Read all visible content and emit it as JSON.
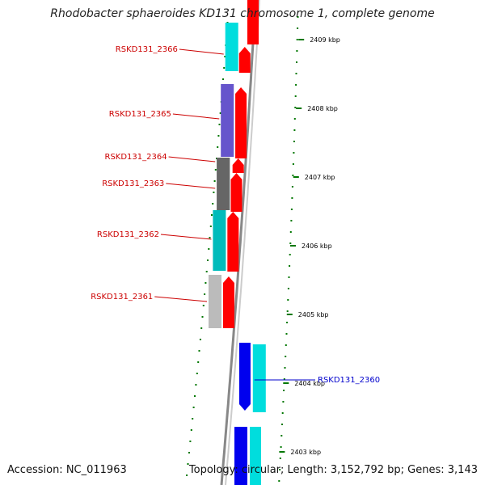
{
  "title": "Rhodobacter sphaeroides KD131 chromosome 1, complete genome",
  "footer": {
    "accession": "Accession: NC_011963",
    "topology": "Topology: circular; Length: 3,152,792 bp; Genes: 3,143"
  },
  "colors": {
    "forward_cds": "#ff0000",
    "reverse_cds": "#0000ee",
    "tick": "#007700",
    "gene_label_forward": "#cc0000",
    "gene_label_reverse": "#0000cc",
    "backbone": "#888888"
  },
  "scale_labels": [
    "2409 kbp",
    "2408 kbp",
    "2407 kbp",
    "2406 kbp",
    "2405 kbp",
    "2404 kbp",
    "2403 kbp"
  ],
  "genes": [
    {
      "label": "RSKD131_2366",
      "strand": "forward",
      "ring_color": "#00dddd"
    },
    {
      "label": "RSKD131_2365",
      "strand": "forward",
      "ring_color": "#6655cc"
    },
    {
      "label": "RSKD131_2364",
      "strand": "forward",
      "ring_color": "#666666"
    },
    {
      "label": "RSKD131_2363",
      "strand": "forward",
      "ring_color": "#666666"
    },
    {
      "label": "RSKD131_2362",
      "strand": "forward",
      "ring_color": "#00bbbb"
    },
    {
      "label": "RSKD131_2361",
      "strand": "forward",
      "ring_color": "#bbbbbb"
    },
    {
      "label": "RSKD131_2360",
      "strand": "reverse",
      "ring_color": "#00dddd"
    }
  ]
}
